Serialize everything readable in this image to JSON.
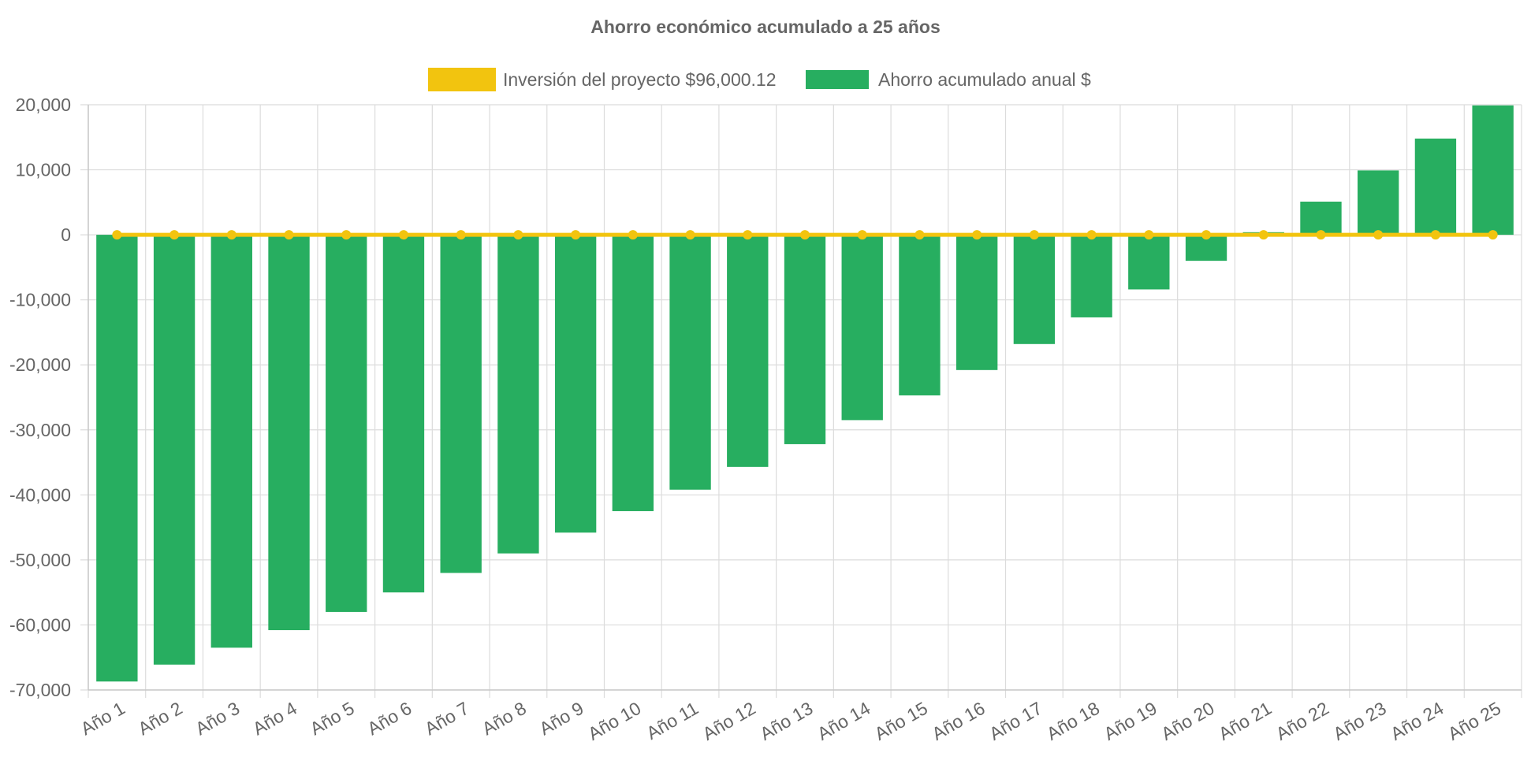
{
  "chart_data": {
    "type": "bar",
    "title": "Ahorro económico acumulado a 25 años",
    "categories": [
      "Año 1",
      "Año 2",
      "Año 3",
      "Año 4",
      "Año 5",
      "Año 6",
      "Año 7",
      "Año 8",
      "Año 9",
      "Año 10",
      "Año 11",
      "Año 12",
      "Año 13",
      "Año 14",
      "Año 15",
      "Año 16",
      "Año 17",
      "Año 18",
      "Año 19",
      "Año 20",
      "Año 21",
      "Año 22",
      "Año 23",
      "Año 24",
      "Año 25"
    ],
    "series": [
      {
        "name": "Inversión del proyecto $96,000.12",
        "type": "line",
        "color": "#f2c40f",
        "values": [
          0,
          0,
          0,
          0,
          0,
          0,
          0,
          0,
          0,
          0,
          0,
          0,
          0,
          0,
          0,
          0,
          0,
          0,
          0,
          0,
          0,
          0,
          0,
          0,
          0
        ]
      },
      {
        "name": "Ahorro acumulado anual $",
        "type": "bar",
        "color": "#27ae60",
        "values": [
          -68700,
          -66100,
          -63500,
          -60800,
          -58000,
          -55000,
          -52000,
          -49000,
          -45800,
          -42500,
          -39200,
          -35700,
          -32200,
          -28500,
          -24700,
          -20800,
          -16800,
          -12700,
          -8400,
          -4000,
          400,
          5100,
          9900,
          14800,
          19900
        ]
      }
    ],
    "ylim": [
      -70000,
      20000
    ],
    "yticks": [
      20000,
      10000,
      0,
      -10000,
      -20000,
      -30000,
      -40000,
      -50000,
      -60000,
      -70000
    ],
    "ytick_labels": [
      "20,000",
      "10,000",
      "0",
      "-10,000",
      "-20,000",
      "-30,000",
      "-40,000",
      "-50,000",
      "-60,000",
      "-70,000"
    ],
    "xlabel": "",
    "ylabel": "",
    "legend_position": "top",
    "grid": true
  }
}
